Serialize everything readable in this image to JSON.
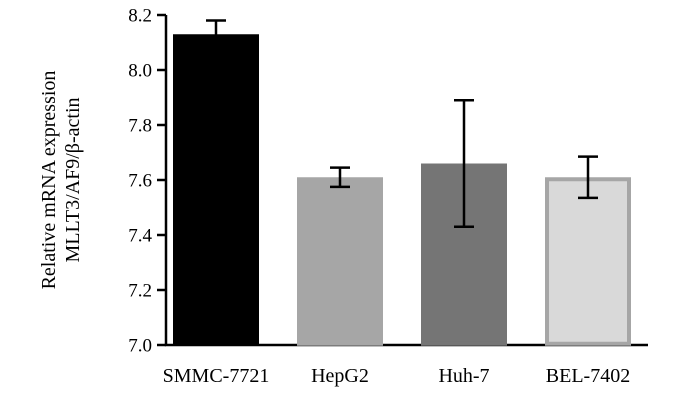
{
  "chart_data": {
    "type": "bar",
    "title": "",
    "xlabel": "",
    "ylabel_lines": [
      "Relative mRNA expression",
      "MLLT3/AF9/β-actin"
    ],
    "categories": [
      "SMMC-7721",
      "HepG2",
      "Huh-7",
      "BEL-7402"
    ],
    "values": [
      8.13,
      7.61,
      7.66,
      7.61
    ],
    "errors": [
      0.05,
      0.035,
      0.23,
      0.075
    ],
    "ylim": [
      7.0,
      8.2
    ],
    "yticks": [
      "7.0",
      "7.2",
      "7.4",
      "7.6",
      "7.8",
      "8.0",
      "8.2"
    ],
    "grid": false,
    "legend": "none",
    "colors": {
      "fills": [
        "#000000",
        "#a6a6a6",
        "#757575",
        "#d9d9d9"
      ],
      "strokes": [
        "#000000",
        "#a6a6a6",
        "#757575",
        "#a6a6a6"
      ],
      "axis": "#000000",
      "error_bar": "#000000"
    }
  }
}
